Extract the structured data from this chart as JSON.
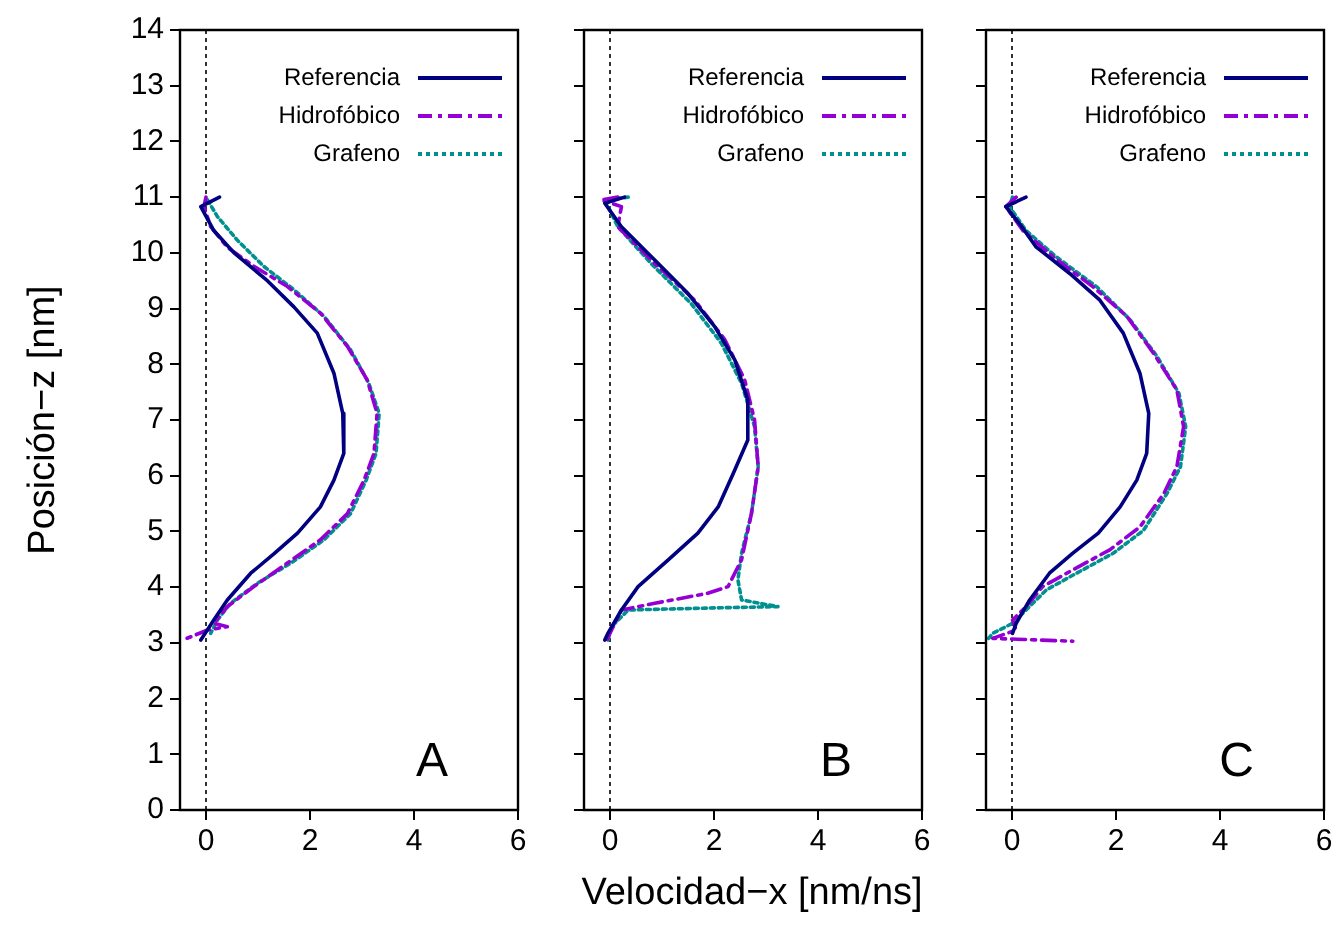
{
  "chart_data": [
    {
      "type": "line",
      "ylabel": "Posición−z [nm]",
      "annotations": [
        "A"
      ],
      "xlim": [
        -0.5,
        6
      ],
      "xticks": [
        0,
        2,
        4,
        6
      ],
      "ylim": [
        0,
        14
      ],
      "yticks": [
        0,
        1,
        2,
        3,
        4,
        5,
        6,
        7,
        8,
        9,
        10,
        11,
        12,
        13,
        14
      ],
      "grid": false,
      "legend": "top right",
      "marker": "none",
      "ref_lines": [
        {
          "axis": "x",
          "value": 0,
          "color": "#000000",
          "line_style": "dotted"
        }
      ],
      "series": [
        {
          "name": "Referencia",
          "color": "#000080",
          "line_style": "solid",
          "x": [
            0.26,
            -0.1,
            0.15,
            0.54,
            1.18,
            1.69,
            2.14,
            2.46,
            2.63,
            2.65,
            2.46,
            2.2,
            1.76,
            1.31,
            0.86,
            0.41,
            0.15,
            -0.1
          ],
          "values": [
            11.0,
            10.83,
            10.4,
            10.0,
            9.5,
            9.03,
            8.56,
            7.84,
            7.12,
            6.4,
            5.92,
            5.44,
            4.97,
            4.6,
            4.25,
            3.77,
            3.41,
            3.05
          ]
        },
        {
          "name": "Hidrofóbico",
          "color": "#9400d3",
          "line_style": "dashed",
          "x": [
            0,
            -0.04,
            0.09,
            0.41,
            0.92,
            1.56,
            2.2,
            2.72,
            3.1,
            3.29,
            3.23,
            3.04,
            2.72,
            2.2,
            1.56,
            0.92,
            0.41,
            0.15,
            0.41,
            0.03,
            -0.45
          ],
          "values": [
            11.0,
            10.83,
            10.47,
            10.1,
            9.76,
            9.4,
            8.92,
            8.32,
            7.72,
            7.12,
            6.4,
            5.92,
            5.32,
            4.85,
            4.43,
            4.01,
            3.65,
            3.35,
            3.29,
            3.23,
            3.05
          ]
        },
        {
          "name": "Grafeno",
          "color": "#009090",
          "line_style": "dotted",
          "x": [
            0.03,
            0.22,
            0.6,
            1.12,
            1.69,
            2.27,
            2.78,
            3.13,
            3.33,
            3.27,
            3.08,
            2.78,
            2.27,
            1.63,
            0.99,
            0.47,
            0.22,
            0.09
          ],
          "values": [
            10.95,
            10.65,
            10.23,
            9.75,
            9.34,
            8.86,
            8.26,
            7.66,
            7.12,
            6.4,
            5.92,
            5.32,
            4.85,
            4.43,
            4.07,
            3.71,
            3.41,
            3.17
          ]
        }
      ]
    },
    {
      "type": "line",
      "xlabel": "Velocidad−x [nm/ns]",
      "annotations": [
        "B"
      ],
      "xlim": [
        -0.5,
        6
      ],
      "xticks": [
        0,
        2,
        4,
        6
      ],
      "ylim": [
        0,
        14
      ],
      "yticks": [
        0,
        1,
        2,
        3,
        4,
        5,
        6,
        7,
        8,
        9,
        10,
        11,
        12,
        13,
        14
      ],
      "tick_labels": "x",
      "grid": false,
      "legend": "top right",
      "marker": "none",
      "ref_lines": [
        {
          "axis": "x",
          "value": 0,
          "color": "#000000",
          "line_style": "dotted"
        }
      ],
      "series": [
        {
          "name": "Referencia",
          "color": "#000080",
          "line_style": "solid",
          "x": [
            0.28,
            -0.1,
            0.22,
            0.86,
            1.5,
            2.01,
            2.4,
            2.65,
            2.65,
            2.37,
            2.08,
            1.69,
            1.12,
            0.54,
            0.22,
            -0.04,
            -0.1
          ],
          "values": [
            11.0,
            10.89,
            10.47,
            9.87,
            9.27,
            8.68,
            8.08,
            7.36,
            6.64,
            6.04,
            5.44,
            4.97,
            4.49,
            4.01,
            3.59,
            3.17,
            3.05
          ]
        },
        {
          "name": "Hidrofóbico",
          "color": "#9400d3",
          "line_style": "dashed",
          "x": [
            0.15,
            -0.17,
            0.22,
            0.15,
            0.86,
            1.63,
            2.21,
            2.59,
            2.78,
            2.85,
            2.72,
            2.53,
            2.27,
            1.88,
            0.86,
            0.22,
            0.03,
            -0.06
          ],
          "values": [
            11.0,
            10.95,
            10.83,
            10.47,
            9.81,
            9.15,
            8.44,
            7.72,
            7.0,
            6.16,
            5.32,
            4.49,
            4.01,
            3.89,
            3.71,
            3.59,
            3.23,
            3.05
          ]
        },
        {
          "name": "Grafeno",
          "color": "#009090",
          "line_style": "dotted",
          "x": [
            0.35,
            -0.1,
            0.15,
            0.79,
            1.56,
            2.14,
            2.53,
            2.78,
            2.85,
            2.72,
            2.53,
            2.46,
            2.53,
            3.23,
            2.14,
            0.35,
            0.03,
            -0.04
          ],
          "values": [
            11.0,
            10.95,
            10.47,
            9.81,
            9.09,
            8.38,
            7.66,
            6.88,
            6.16,
            5.32,
            4.61,
            4.13,
            3.77,
            3.65,
            3.63,
            3.59,
            3.29,
            3.05
          ]
        }
      ]
    },
    {
      "type": "line",
      "annotations": [
        "C"
      ],
      "xlim": [
        -0.5,
        6
      ],
      "xticks": [
        0,
        2,
        4,
        6
      ],
      "ylim": [
        0,
        14
      ],
      "yticks": [
        0,
        1,
        2,
        3,
        4,
        5,
        6,
        7,
        8,
        9,
        10,
        11,
        12,
        13,
        14
      ],
      "tick_labels": "x",
      "grid": false,
      "legend": "top right",
      "marker": "none",
      "ref_lines": [
        {
          "axis": "x",
          "value": 0,
          "color": "#000000",
          "line_style": "dotted"
        }
      ],
      "series": [
        {
          "name": "Referencia",
          "color": "#000080",
          "line_style": "solid",
          "x": [
            0.27,
            -0.12,
            0.14,
            0.46,
            1.11,
            1.69,
            2.14,
            2.46,
            2.63,
            2.59,
            2.4,
            2.08,
            1.66,
            1.17,
            0.72,
            0.34,
            0.08,
            0.01
          ],
          "values": [
            11.0,
            10.83,
            10.53,
            10.11,
            9.63,
            9.15,
            8.56,
            7.84,
            7.12,
            6.4,
            5.92,
            5.44,
            4.97,
            4.61,
            4.25,
            3.77,
            3.35,
            3.17
          ]
        },
        {
          "name": "Hidrofóbico",
          "color": "#9400d3",
          "line_style": "dashed",
          "x": [
            0.08,
            -0.12,
            0.21,
            0.79,
            1.56,
            2.21,
            2.72,
            3.17,
            3.3,
            3.17,
            2.92,
            2.46,
            1.88,
            1.17,
            0.59,
            0.27,
            0.01,
            0.08,
            -0.37,
            1.17
          ],
          "values": [
            11.0,
            10.83,
            10.4,
            9.93,
            9.39,
            8.86,
            8.2,
            7.54,
            6.88,
            6.16,
            5.68,
            5.08,
            4.67,
            4.31,
            4.01,
            3.65,
            3.41,
            3.23,
            3.08,
            3.03
          ]
        },
        {
          "name": "Grafeno",
          "color": "#009090",
          "line_style": "dotted",
          "x": [
            0.01,
            -0.05,
            0.27,
            0.85,
            1.63,
            2.27,
            2.79,
            3.21,
            3.34,
            3.24,
            2.98,
            2.53,
            1.95,
            1.24,
            0.66,
            0.27,
            0.01,
            -0.37,
            -0.45
          ],
          "values": [
            11.0,
            10.83,
            10.4,
            9.93,
            9.39,
            8.8,
            8.14,
            7.48,
            6.88,
            6.16,
            5.68,
            5.02,
            4.61,
            4.25,
            3.95,
            3.59,
            3.35,
            3.17,
            3.08
          ]
        }
      ]
    }
  ]
}
